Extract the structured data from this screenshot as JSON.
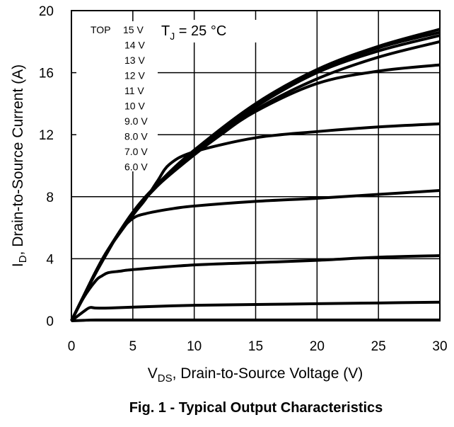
{
  "chart_data": {
    "type": "line",
    "title": "Fig. 1 - Typical Output Characteristics",
    "xlabel_main": "V",
    "xlabel_sub": "DS",
    "xlabel_rest": ", Drain-to-Source Voltage (V)",
    "ylabel_main": "I",
    "ylabel_sub": "D",
    "ylabel_rest": ", Drain-to-Source Current (A)",
    "xlim": [
      0,
      30
    ],
    "ylim": [
      0,
      20
    ],
    "xticks": [
      "0",
      "5",
      "10",
      "15",
      "20",
      "25",
      "30"
    ],
    "yticks": [
      "0",
      "4",
      "8",
      "12",
      "16",
      "20"
    ],
    "grid": true,
    "annotation": {
      "main": "T",
      "sub": "J",
      "rest": " = 25 °C"
    },
    "legend": {
      "prefix": "TOP",
      "placement": "top-left",
      "entries": [
        "15 V",
        "14 V",
        "13 V",
        "12 V",
        "11 V",
        "10 V",
        "9.0 V",
        "8.0 V",
        "7.0 V",
        "6.0 V"
      ]
    },
    "series": [
      {
        "name": "15 V",
        "x": [
          0,
          1,
          2,
          3,
          5,
          7,
          10,
          15,
          20,
          25,
          30
        ],
        "y": [
          0,
          1.6,
          3.2,
          4.6,
          7.0,
          8.8,
          11.0,
          14.0,
          16.2,
          17.7,
          18.8
        ]
      },
      {
        "name": "14 V",
        "x": [
          0,
          1,
          2,
          3,
          5,
          7,
          10,
          15,
          20,
          25,
          30
        ],
        "y": [
          0,
          1.6,
          3.2,
          4.6,
          7.0,
          8.8,
          11.0,
          13.9,
          16.1,
          17.6,
          18.6
        ]
      },
      {
        "name": "13 V",
        "x": [
          0,
          1,
          2,
          3,
          5,
          7,
          10,
          15,
          20,
          25,
          30
        ],
        "y": [
          0,
          1.6,
          3.2,
          4.6,
          6.9,
          8.7,
          10.9,
          13.8,
          16.0,
          17.4,
          18.4
        ]
      },
      {
        "name": "12 V",
        "x": [
          0,
          1,
          2,
          3,
          5,
          7,
          10,
          15,
          20,
          25,
          30
        ],
        "y": [
          0,
          1.6,
          3.2,
          4.6,
          6.9,
          8.7,
          10.8,
          13.6,
          15.6,
          17.0,
          18.0
        ]
      },
      {
        "name": "11 V",
        "x": [
          0,
          1,
          2,
          3,
          5,
          7,
          10,
          12,
          15,
          20,
          25,
          30
        ],
        "y": [
          0,
          1.6,
          3.2,
          4.6,
          6.9,
          8.7,
          10.7,
          11.9,
          13.5,
          15.3,
          16.1,
          16.5
        ]
      },
      {
        "name": "10 V",
        "x": [
          0,
          1,
          2,
          3,
          5,
          6,
          7,
          8,
          10,
          15,
          20,
          25,
          30
        ],
        "y": [
          0,
          1.6,
          3.2,
          4.6,
          6.8,
          7.8,
          9.0,
          10.1,
          10.9,
          11.8,
          12.2,
          12.5,
          12.7
        ]
      },
      {
        "name": "9.0 V",
        "x": [
          0,
          1,
          2,
          3,
          4,
          5,
          6,
          8,
          10,
          15,
          20,
          25,
          30
        ],
        "y": [
          0,
          1.6,
          3.1,
          4.5,
          5.8,
          6.6,
          6.9,
          7.2,
          7.4,
          7.7,
          7.9,
          8.15,
          8.4
        ]
      },
      {
        "name": "8.0 V",
        "x": [
          0,
          1,
          2,
          2.5,
          3,
          4,
          5,
          10,
          15,
          20,
          25,
          30
        ],
        "y": [
          0,
          1.5,
          2.6,
          2.9,
          3.1,
          3.2,
          3.3,
          3.6,
          3.75,
          3.9,
          4.1,
          4.2
        ]
      },
      {
        "name": "7.0 V",
        "x": [
          0,
          1,
          1.5,
          2,
          3,
          5,
          10,
          15,
          20,
          25,
          30
        ],
        "y": [
          0,
          0.6,
          0.85,
          0.82,
          0.82,
          0.88,
          1.0,
          1.05,
          1.1,
          1.15,
          1.2
        ]
      },
      {
        "name": "6.0 V",
        "x": [
          0,
          1,
          2,
          5,
          10,
          15,
          20,
          25,
          30
        ],
        "y": [
          0,
          0.03,
          0.05,
          0.05,
          0.05,
          0.05,
          0.05,
          0.05,
          0.05
        ]
      }
    ]
  }
}
